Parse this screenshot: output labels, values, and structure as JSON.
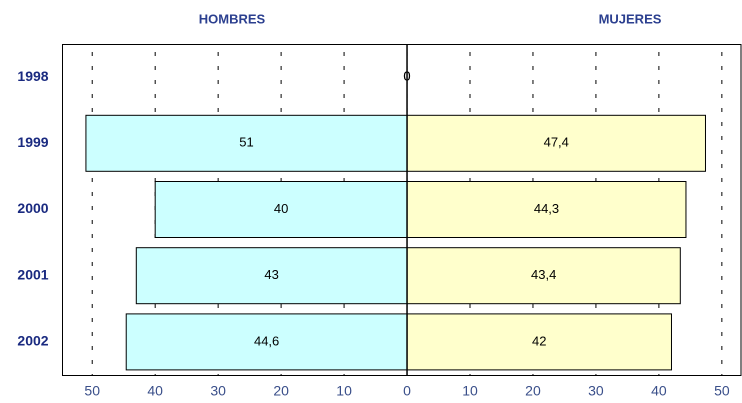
{
  "chart_data": {
    "type": "butterfly-bar",
    "categories": [
      "1998",
      "1999",
      "2000",
      "2001",
      "2002"
    ],
    "series": [
      {
        "name": "HOMBRES",
        "color": "#ccffff",
        "values": [
          0,
          51,
          40,
          43,
          44.6
        ],
        "value_labels": [
          "0",
          "51",
          "40",
          "43",
          "44,6"
        ]
      },
      {
        "name": "MUJERES",
        "color": "#ffffcc",
        "values": [
          0,
          47.4,
          44.3,
          43.4,
          42
        ],
        "value_labels": [
          "0",
          "47,4",
          "44,3",
          "43,4",
          "42"
        ]
      }
    ],
    "xlim": [
      -54.8,
      53.2
    ],
    "xticks": [
      {
        "value": -50,
        "label": "50"
      },
      {
        "value": -40,
        "label": "40"
      },
      {
        "value": -30,
        "label": "30"
      },
      {
        "value": -20,
        "label": "20"
      },
      {
        "value": -10,
        "label": "10"
      },
      0,
      10,
      20,
      30,
      40,
      50
    ],
    "grid": true
  }
}
